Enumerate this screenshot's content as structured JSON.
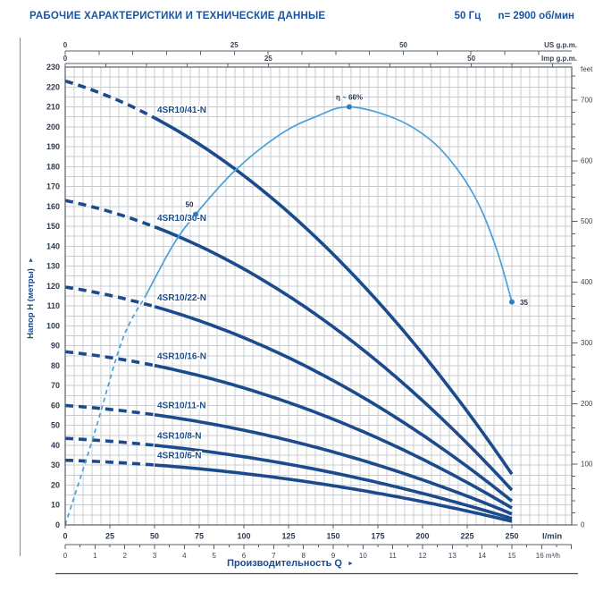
{
  "header": {
    "title": "РАБОЧИЕ ХАРАКТЕРИСТИКИ И ТЕХНИЧЕСКИЕ ДАННЫЕ",
    "frequency": "50 Гц",
    "speed": "n= 2900 об/мин"
  },
  "colors": {
    "brand_blue": "#1b55a0",
    "pump_curve": "#1b4b8c",
    "efficiency_curve": "#49a0d8",
    "efficiency_dot": "#2d80c0",
    "grid": "#c9cdd2",
    "plot_border": "#5a6068",
    "tick_label": "#2f3b4e",
    "page_rule": "#8c8c8c"
  },
  "chart_data": {
    "type": "line",
    "description": "Submersible pump 4SR10 series head/flow performance curves with efficiency curve",
    "x_axis_title": "Производительность Q",
    "y_axis_title": "Напор H (метры)",
    "axes": {
      "x_bottom_lmin": {
        "unit": "l/min",
        "ticks": [
          0,
          25,
          50,
          75,
          100,
          125,
          150,
          175,
          200,
          225,
          250
        ],
        "min": 0,
        "labeled_max": 250
      },
      "x_bottom_m3h": {
        "unit": "m³/h",
        "ticks": [
          0,
          1,
          2,
          3,
          4,
          5,
          6,
          7,
          8,
          9,
          10,
          11,
          12,
          13,
          14,
          15,
          16
        ],
        "last_tick_with_unit": "16 m³/h",
        "minor_step": 0.5
      },
      "x_top_us_gpm": {
        "unit": "US g.p.m.",
        "labeled_ticks": [
          0,
          25,
          50
        ],
        "minor_step": 5
      },
      "x_top_imp_gpm": {
        "unit": "Imp g.p.m.",
        "labeled_ticks": [
          0,
          25,
          50
        ],
        "minor_step": 5
      },
      "y_left_m": {
        "unit": "метры",
        "ticks": [
          0,
          10,
          20,
          30,
          40,
          50,
          60,
          70,
          80,
          90,
          100,
          110,
          120,
          130,
          140,
          150,
          160,
          170,
          180,
          190,
          200,
          210,
          220,
          230
        ],
        "min": 0,
        "max": 230,
        "grid_step": 5
      },
      "y_right_feet": {
        "unit": "feet",
        "labeled_ticks": [
          0,
          100,
          200,
          300,
          400,
          500,
          600,
          700
        ],
        "minor_step": 20
      }
    },
    "grid": true,
    "series": [
      {
        "name": "4SR10/41-N",
        "q_lmin": [
          0,
          125,
          250
        ],
        "head_m": [
          223,
          157,
          25.5
        ],
        "dashed_until_lmin": 50
      },
      {
        "name": "4SR10/30-N",
        "q_lmin": [
          0,
          125,
          250
        ],
        "head_m": [
          163,
          115,
          17.5
        ],
        "dashed_until_lmin": 50
      },
      {
        "name": "4SR10/22-N",
        "q_lmin": [
          0,
          125,
          250
        ],
        "head_m": [
          119.5,
          84,
          12
        ],
        "dashed_until_lmin": 50
      },
      {
        "name": "4SR10/16-N",
        "q_lmin": [
          0,
          125,
          250
        ],
        "head_m": [
          87,
          61.5,
          8.5
        ],
        "dashed_until_lmin": 50
      },
      {
        "name": "4SR10/11-N",
        "q_lmin": [
          0,
          125,
          250
        ],
        "head_m": [
          60,
          42.5,
          5.5
        ],
        "dashed_until_lmin": 50
      },
      {
        "name": "4SR10/8-N",
        "q_lmin": [
          0,
          125,
          250
        ],
        "head_m": [
          43.5,
          30.5,
          3.2
        ],
        "dashed_until_lmin": 50
      },
      {
        "name": "4SR10/6-N",
        "q_lmin": [
          0,
          125,
          250
        ],
        "head_m": [
          32.5,
          23,
          1.8
        ],
        "dashed_until_lmin": 50
      }
    ],
    "efficiency_curve": {
      "name": "efficiency",
      "points_q_lmin": [
        0,
        16,
        32,
        45,
        60,
        73,
        95,
        120,
        140,
        159,
        185,
        205,
        220,
        232,
        242,
        250
      ],
      "points_head_axis_m": [
        0,
        45,
        93,
        115,
        140,
        156,
        178,
        196,
        205,
        210,
        204,
        193,
        178,
        160,
        137,
        112
      ],
      "dashed_until_lmin": 45,
      "markers": [
        {
          "q_lmin": 73,
          "head_axis_m": 156,
          "label": "50",
          "label_pos": "above-left"
        },
        {
          "q_lmin": 159,
          "head_axis_m": 210,
          "label": "η ~ 66%",
          "label_pos": "above"
        },
        {
          "q_lmin": 250,
          "head_axis_m": 112,
          "label": "35",
          "label_pos": "right"
        }
      ]
    }
  }
}
